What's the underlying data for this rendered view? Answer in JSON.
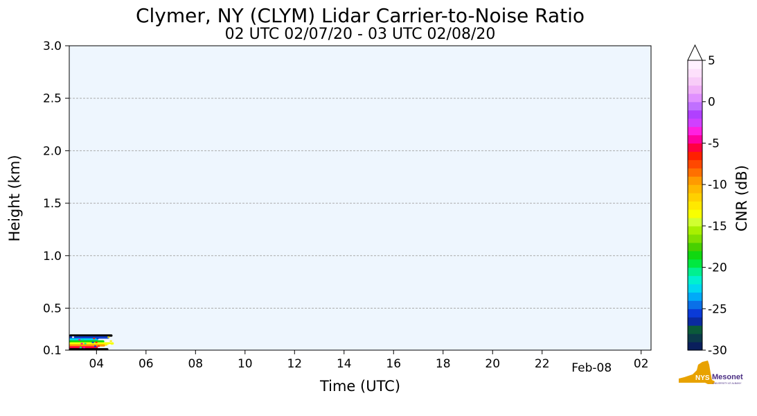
{
  "title": "Clymer, NY (CLYM) Lidar Carrier-to-Noise Ratio",
  "subtitle": "02 UTC 02/07/20 - 03 UTC 02/08/20",
  "colors": {
    "plot_background": "#eef6fe",
    "grid": "#aaaaaa"
  },
  "chart_data": {
    "type": "heatmap",
    "xlabel": "Time (UTC)",
    "ylabel": "Height (km)",
    "xlim_hours": [
      2.9,
      26.4
    ],
    "ylim": [
      0.1,
      3.0
    ],
    "x_ticks": [
      {
        "hour": 4,
        "label": "04"
      },
      {
        "hour": 6,
        "label": "06"
      },
      {
        "hour": 8,
        "label": "08"
      },
      {
        "hour": 10,
        "label": "10"
      },
      {
        "hour": 12,
        "label": "12"
      },
      {
        "hour": 14,
        "label": "14"
      },
      {
        "hour": 16,
        "label": "16"
      },
      {
        "hour": 18,
        "label": "18"
      },
      {
        "hour": 20,
        "label": "20"
      },
      {
        "hour": 22,
        "label": "22"
      },
      {
        "hour": 26,
        "label": "02"
      }
    ],
    "x_date_label": {
      "hour": 24,
      "label": "Feb-08"
    },
    "y_ticks": [
      {
        "value": 0.1,
        "label": "0.1"
      },
      {
        "value": 0.5,
        "label": "0.5"
      },
      {
        "value": 1.0,
        "label": "1.0"
      },
      {
        "value": 1.5,
        "label": "1.5"
      },
      {
        "value": 2.0,
        "label": "2.0"
      },
      {
        "value": 2.5,
        "label": "2.5"
      },
      {
        "value": 3.0,
        "label": "3.0"
      }
    ],
    "grid": "y-dashed",
    "data_extent": {
      "hour_start": 2.9,
      "hour_end": 4.7,
      "height_max_km": 0.25
    },
    "colorbar": {
      "label": "CNR (dB)",
      "range": [
        -30,
        5
      ],
      "extend": "max",
      "ticks": [
        {
          "value": 5,
          "label": "5"
        },
        {
          "value": 0,
          "label": "0"
        },
        {
          "value": -5,
          "label": "-5"
        },
        {
          "value": -10,
          "label": "-10"
        },
        {
          "value": -15,
          "label": "-15"
        },
        {
          "value": -20,
          "label": "-20"
        },
        {
          "value": -25,
          "label": "-25"
        },
        {
          "value": -30,
          "label": "-30"
        }
      ],
      "colors": [
        "#0a1f5c",
        "#0b3a4a",
        "#0b5a3a",
        "#0a2aa0",
        "#0a3ad8",
        "#0a70e8",
        "#00aaf8",
        "#00d8f0",
        "#00f0d0",
        "#00f090",
        "#00e840",
        "#10d810",
        "#48d000",
        "#80e000",
        "#a8f000",
        "#d0ff30",
        "#f8ff00",
        "#ffe800",
        "#ffd000",
        "#ffb800",
        "#ff9a00",
        "#ff7000",
        "#ff4800",
        "#ff2000",
        "#ff0040",
        "#ff00a0",
        "#ff20e0",
        "#d040ff",
        "#b040ff",
        "#c070ff",
        "#e090ff",
        "#f0b0f8",
        "#f8ccf8",
        "#fde0fb",
        "#fff0ff"
      ]
    }
  },
  "logo": {
    "text": "NYS",
    "text2": "Mesonet",
    "subtext": "UNIVERSITY AT ALBANY",
    "state_color": "#e8a200",
    "text_color": "#4b2e83"
  }
}
